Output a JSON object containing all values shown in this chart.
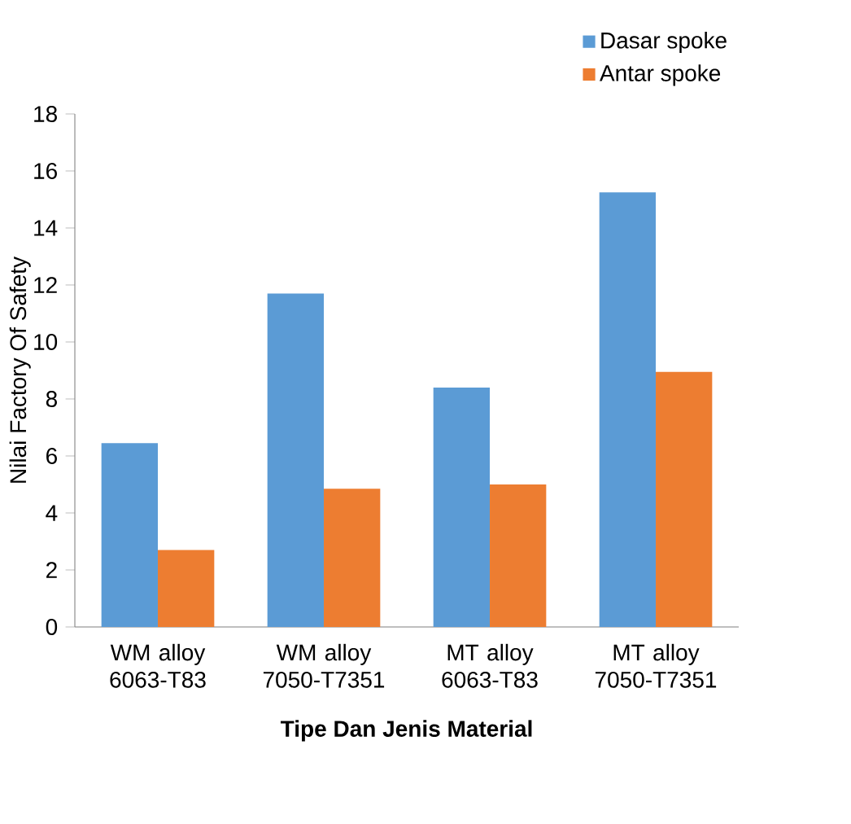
{
  "chart_data": {
    "type": "bar",
    "xlabel": "Tipe Dan Jenis Material",
    "ylabel": "Nilai Factory Of Safety",
    "categories": [
      "WM alloy 6063-T83",
      "WM alloy 7050-T7351",
      "MT alloy 6063-T83",
      "MT alloy 7050-T7351"
    ],
    "series": [
      {
        "name": "Dasar spoke",
        "color": "#5b9bd5",
        "values": [
          6.45,
          11.7,
          8.4,
          15.25
        ]
      },
      {
        "name": "Antar spoke",
        "color": "#ed7d31",
        "values": [
          2.7,
          4.85,
          5.0,
          8.95
        ]
      }
    ],
    "ylim": [
      0,
      18
    ],
    "yticks": [
      0,
      2,
      4,
      6,
      8,
      10,
      12,
      14,
      16,
      18
    ],
    "legend": "top right",
    "grid": false
  }
}
